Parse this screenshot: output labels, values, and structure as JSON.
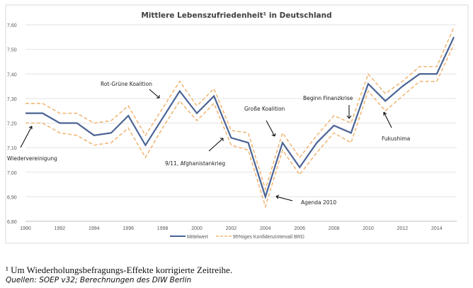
{
  "chart_data": {
    "type": "line",
    "title": "Mittlere Lebenszufriedenheit¹ in Deutschland",
    "x": [
      1990,
      1991,
      1992,
      1993,
      1994,
      1995,
      1996,
      1997,
      1998,
      1999,
      2000,
      2001,
      2002,
      2003,
      2004,
      2005,
      2006,
      2007,
      2008,
      2009,
      2010,
      2011,
      2012,
      2013,
      2014,
      2015
    ],
    "series": [
      {
        "name": "Mittelwert",
        "color": "#4a6394",
        "style": "solid",
        "values": [
          7.24,
          7.24,
          7.2,
          7.2,
          7.15,
          7.16,
          7.23,
          7.11,
          7.22,
          7.33,
          7.24,
          7.31,
          7.14,
          7.12,
          6.9,
          7.12,
          7.02,
          7.12,
          7.19,
          7.16,
          7.36,
          7.29,
          7.35,
          7.4,
          7.4,
          7.55
        ]
      },
      {
        "name": "95%iges Konfidenzintervall BRD",
        "color": "#f0b878",
        "style": "dashed",
        "values": [
          7.28,
          7.28,
          7.24,
          7.24,
          7.2,
          7.21,
          7.27,
          7.15,
          7.26,
          7.37,
          7.27,
          7.34,
          7.17,
          7.16,
          6.93,
          7.16,
          7.06,
          7.15,
          7.23,
          7.2,
          7.4,
          7.32,
          7.37,
          7.43,
          7.43,
          7.59
        ]
      },
      {
        "name": "95%iges Konfidenzintervall BRD",
        "color": "#f0b878",
        "style": "dashed",
        "values": [
          7.2,
          7.2,
          7.16,
          7.15,
          7.11,
          7.12,
          7.18,
          7.06,
          7.18,
          7.29,
          7.21,
          7.28,
          7.11,
          7.09,
          6.86,
          7.09,
          6.99,
          7.08,
          7.16,
          7.12,
          7.33,
          7.25,
          7.31,
          7.37,
          7.37,
          7.52
        ]
      }
    ],
    "legend_entries": [
      "Mittelwert",
      "95%iges Konfidenzintervall BRD"
    ],
    "legend_position": "bottom",
    "ylim": [
      6.8,
      7.6
    ],
    "yticks": [
      "6,80",
      "6,90",
      "7,00",
      "7,10",
      "7,20",
      "7,30",
      "7,40",
      "7,50",
      "7,60"
    ],
    "xticks": [
      "1990",
      "1992",
      "1994",
      "1996",
      "1998",
      "2000",
      "2002",
      "2004",
      "2006",
      "2008",
      "2010",
      "2012",
      "2014"
    ],
    "grid": "horizontal",
    "annotations": [
      "Wiedervereinigung",
      "Rot-Grüne Koalition",
      "9/11, Afghanistankrieg",
      "Große Koalition",
      "Agenda 2010",
      "Beginn Finanzkrise",
      "Fukushima"
    ]
  },
  "footnote": "¹ Um Wiederholungsbefragungs-Effekte korrigierte Zeitreihe.",
  "source": "Quellen: SOEP v32; Berechnungen des DIW Berlin"
}
